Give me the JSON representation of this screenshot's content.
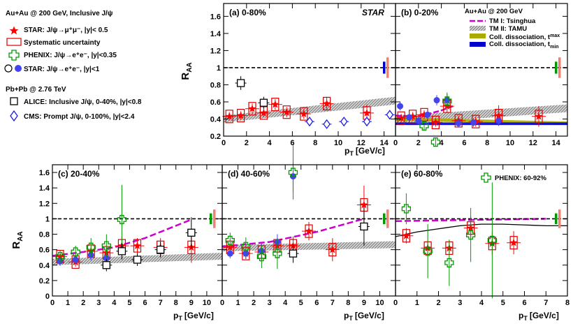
{
  "legend_left": {
    "au_title": "Au+Au @ 200 GeV, Inclusive J/ψ",
    "star_mumu": "STAR: J/ψ→μ⁺μ⁻, |y|< 0.5",
    "syst": "Systematic uncertainty",
    "phenix": "PHENIX: J/ψ→e⁺e⁻, |y|<0.35",
    "star_ee": "STAR: J/ψ→e⁺e⁻, |y|<1",
    "pb_title": "Pb+Pb @ 2.76 TeV",
    "alice": "ALICE: Inclusive J/ψ, 0-40%, |y|<0.8",
    "cms": "CMS: Prompt J/ψ, 0-100%, |y|<2.4"
  },
  "legend_models": {
    "title": "Au+Au @ 200 GeV",
    "tm1": "TM I: Tsinghua",
    "tm2": "TM II: TAMU",
    "cd_max": "Coll. dissociation, t",
    "cd_max_sub": "max",
    "cd_min": "Coll. dissociation, t",
    "cd_min_sub": "min"
  },
  "phenix_note": "PHENIX: 60-92%",
  "star_label": "STAR",
  "ylabel": "R",
  "ylabel_sub": "AA",
  "xlabel": "p",
  "xlabel_sub": "T",
  "xlabel_unit": "[GeV/c]",
  "colors": {
    "star_red": "#ff0000",
    "syst_red": "#dd0000",
    "phenix_green": "#009900",
    "star_ee_blue": "#4444ee",
    "cms_blue": "#1a1aee",
    "tm1_magenta": "#cc00cc",
    "band_grey": "#8c8c8c",
    "cd_olive": "#aaaa00",
    "cd_blue": "#0000cc",
    "norm_green": "#009900",
    "norm_salmon": "#f08070"
  },
  "chart_data": [
    {
      "type": "scatter",
      "title": "(a) 0-80%",
      "xlabel": "p_T [GeV/c]",
      "ylabel": "R_AA",
      "xlim": [
        0,
        15
      ],
      "ylim": [
        0.2,
        1.75
      ],
      "xticks": [
        0,
        2,
        4,
        6,
        8,
        10,
        12,
        14
      ],
      "yticks": [
        0.2,
        0.4,
        0.6,
        0.8,
        1,
        1.2,
        1.4,
        1.6
      ],
      "series": [
        {
          "name": "STAR mumu",
          "marker": "star",
          "x": [
            0.5,
            1.5,
            2.5,
            3.5,
            4.5,
            5.5,
            7.0,
            9.0,
            12.5
          ],
          "y": [
            0.43,
            0.44,
            0.52,
            0.47,
            0.57,
            0.48,
            0.46,
            0.58,
            0.47
          ],
          "err": [
            0.05,
            0.05,
            0.06,
            0.05,
            0.06,
            0.06,
            0.06,
            0.08,
            0.1
          ]
        },
        {
          "name": "ALICE",
          "marker": "open-square",
          "x": [
            1.5,
            3.5
          ],
          "y": [
            0.82,
            0.59
          ],
          "err": [
            0.08,
            0.07
          ]
        },
        {
          "name": "CMS",
          "marker": "open-diamond",
          "x": [
            7.5,
            9.0,
            10.5,
            12.5,
            14.5
          ],
          "y": [
            0.37,
            0.34,
            0.37,
            0.37,
            0.45
          ],
          "err": [
            0.04,
            0.04,
            0.04,
            0.05,
            0.05
          ]
        }
      ],
      "band": {
        "name": "TM II",
        "x": [
          0,
          15
        ],
        "lo": [
          0.36,
          0.57
        ],
        "hi": [
          0.44,
          0.66
        ]
      }
    },
    {
      "type": "scatter",
      "title": "(b) 0-20%",
      "xlim": [
        0,
        15
      ],
      "ylim": [
        0.2,
        1.75
      ],
      "xticks": [
        0,
        2,
        4,
        6,
        8,
        10,
        12,
        14
      ],
      "series": [
        {
          "name": "STAR mumu",
          "marker": "star",
          "x": [
            0.5,
            1.5,
            2.5,
            3.5,
            4.5,
            5.5,
            7.0,
            9.0,
            12.5
          ],
          "y": [
            0.41,
            0.43,
            0.45,
            0.36,
            0.55,
            0.38,
            0.37,
            0.44,
            0.43
          ],
          "err": [
            0.05,
            0.05,
            0.05,
            0.05,
            0.07,
            0.06,
            0.06,
            0.12,
            0.12
          ]
        },
        {
          "name": "STAR ee",
          "marker": "circle",
          "x": [
            0.4,
            1.2,
            2.0,
            2.8,
            3.6,
            4.5,
            5.5,
            6.8,
            9.0
          ],
          "y": [
            0.55,
            0.42,
            0.38,
            0.45,
            0.62,
            0.62,
            0.35,
            0.36,
            0.38
          ],
          "err": [
            0.05,
            0.05,
            0.05,
            0.05,
            0.06,
            0.07,
            0.05,
            0.05,
            0.06
          ]
        },
        {
          "name": "PHENIX",
          "marker": "open-cross",
          "x": [
            2.5,
            3.5,
            4.5
          ],
          "y": [
            0.32,
            0.13,
            0.61
          ],
          "err": [
            0.05,
            0.05,
            0.1
          ]
        }
      ],
      "band": {
        "name": "TM II",
        "x": [
          0,
          15
        ],
        "lo": [
          0.34,
          0.48
        ],
        "hi": [
          0.44,
          0.57
        ]
      }
    },
    {
      "type": "scatter",
      "title": "(c) 20-40%",
      "xlim": [
        0,
        11
      ],
      "ylim": [
        0.0,
        1.7
      ],
      "xticks": [
        0,
        1,
        2,
        3,
        4,
        5,
        6,
        7,
        8,
        9,
        10
      ],
      "yticks": [
        0,
        0.2,
        0.4,
        0.6,
        0.8,
        1,
        1.2,
        1.4,
        1.6
      ],
      "series": [
        {
          "name": "STAR mumu",
          "marker": "star",
          "x": [
            0.5,
            1.5,
            2.5,
            3.5,
            4.5,
            5.5,
            7.0,
            9.0
          ],
          "y": [
            0.51,
            0.44,
            0.58,
            0.56,
            0.65,
            0.65,
            0.63,
            0.63
          ],
          "err": [
            0.06,
            0.06,
            0.08,
            0.08,
            0.12,
            0.1,
            0.12,
            0.2
          ]
        },
        {
          "name": "STAR ee",
          "marker": "circle",
          "x": [
            0.5,
            1.5,
            2.5,
            3.5,
            4.5
          ],
          "y": [
            0.45,
            0.47,
            0.53,
            0.49,
            0.57
          ],
          "err": [
            0.06,
            0.06,
            0.07,
            0.08,
            0.1
          ]
        },
        {
          "name": "PHENIX",
          "marker": "open-cross",
          "x": [
            0.5,
            1.5,
            2.5,
            3.5,
            4.5
          ],
          "y": [
            0.51,
            0.57,
            0.63,
            0.65,
            0.99
          ],
          "err": [
            0.08,
            0.08,
            0.12,
            0.15,
            0.45
          ]
        },
        {
          "name": "ALICE",
          "marker": "open-square",
          "x": [
            3.5,
            4.5,
            5.5,
            7.0,
            9.0
          ],
          "y": [
            0.4,
            0.58,
            0.47,
            0.6,
            0.82
          ],
          "err": [
            0.08,
            0.1,
            0.08,
            0.1,
            0.2
          ]
        }
      ],
      "model_line": {
        "name": "TM I",
        "x": [
          0,
          2,
          4,
          6,
          9
        ],
        "y": [
          0.52,
          0.57,
          0.63,
          0.75,
          0.99
        ]
      },
      "band": {
        "name": "TM II",
        "x": [
          0,
          11
        ],
        "lo": [
          0.4,
          0.47
        ],
        "hi": [
          0.48,
          0.56
        ]
      }
    },
    {
      "type": "scatter",
      "title": "(d) 40-60%",
      "xlim": [
        0,
        11
      ],
      "ylim": [
        0.0,
        1.7
      ],
      "xticks": [
        0,
        1,
        2,
        3,
        4,
        5,
        6,
        7,
        8,
        9,
        10
      ],
      "series": [
        {
          "name": "STAR mumu",
          "marker": "star",
          "x": [
            0.5,
            1.5,
            2.5,
            3.5,
            4.5,
            5.5,
            7.0,
            9.0
          ],
          "y": [
            0.63,
            0.55,
            0.57,
            0.65,
            0.65,
            0.84,
            0.6,
            1.18
          ],
          "err": [
            0.06,
            0.07,
            0.1,
            0.1,
            0.12,
            0.12,
            0.15,
            0.25
          ]
        },
        {
          "name": "STAR ee",
          "marker": "circle",
          "x": [
            0.5,
            1.5,
            2.5,
            3.5,
            4.5
          ],
          "y": [
            0.55,
            0.55,
            0.58,
            0.7,
            1.55
          ],
          "err": [
            0.06,
            0.07,
            0.1,
            0.1,
            0.2
          ]
        },
        {
          "name": "PHENIX",
          "marker": "open-cross",
          "x": [
            0.5,
            1.5,
            2.5,
            3.5,
            4.5
          ],
          "y": [
            0.72,
            0.64,
            0.51,
            0.55,
            1.6
          ],
          "err": [
            0.1,
            0.12,
            0.15,
            0.2,
            0.35
          ]
        },
        {
          "name": "ALICE",
          "marker": "open-square",
          "x": [
            4.5,
            9.0
          ],
          "y": [
            0.55,
            0.9
          ],
          "err": [
            0.12,
            0.25
          ]
        }
      ],
      "model_line": {
        "name": "TM I",
        "x": [
          0,
          3,
          6,
          9
        ],
        "y": [
          0.64,
          0.7,
          0.83,
          1.0
        ]
      },
      "band": {
        "name": "TM II",
        "x": [
          0,
          11
        ],
        "lo": [
          0.58,
          0.62
        ],
        "hi": [
          0.66,
          0.71
        ]
      }
    },
    {
      "type": "scatter",
      "title": "(e) 60-80%",
      "xlim": [
        0,
        8
      ],
      "ylim": [
        0.0,
        1.7
      ],
      "xticks": [
        0,
        1,
        2,
        3,
        4,
        5,
        6,
        7,
        8
      ],
      "series": [
        {
          "name": "STAR mumu",
          "marker": "star",
          "x": [
            0.5,
            1.5,
            2.5,
            3.5,
            4.5,
            5.5
          ],
          "y": [
            0.78,
            0.62,
            0.62,
            0.88,
            0.68,
            0.69
          ],
          "err": [
            0.1,
            0.1,
            0.1,
            0.15,
            0.15,
            0.15
          ]
        },
        {
          "name": "PHENIX",
          "marker": "open-cross",
          "x": [
            0.5,
            1.5,
            2.5,
            3.5,
            4.5
          ],
          "y": [
            1.13,
            0.58,
            0.43,
            0.79,
            0.72
          ],
          "err": [
            0.2,
            0.35,
            0.3,
            0.35,
            0.75
          ]
        }
      ],
      "model_line": {
        "name": "TM I",
        "x": [
          0,
          7
        ],
        "y": [
          0.97,
          1.0
        ]
      },
      "black_line": {
        "x": [
          0,
          1,
          2,
          3,
          4,
          5,
          6,
          7,
          8
        ],
        "y": [
          0.77,
          0.83,
          0.87,
          0.91,
          0.93,
          0.93,
          0.92,
          0.91,
          0.91
        ]
      }
    }
  ]
}
